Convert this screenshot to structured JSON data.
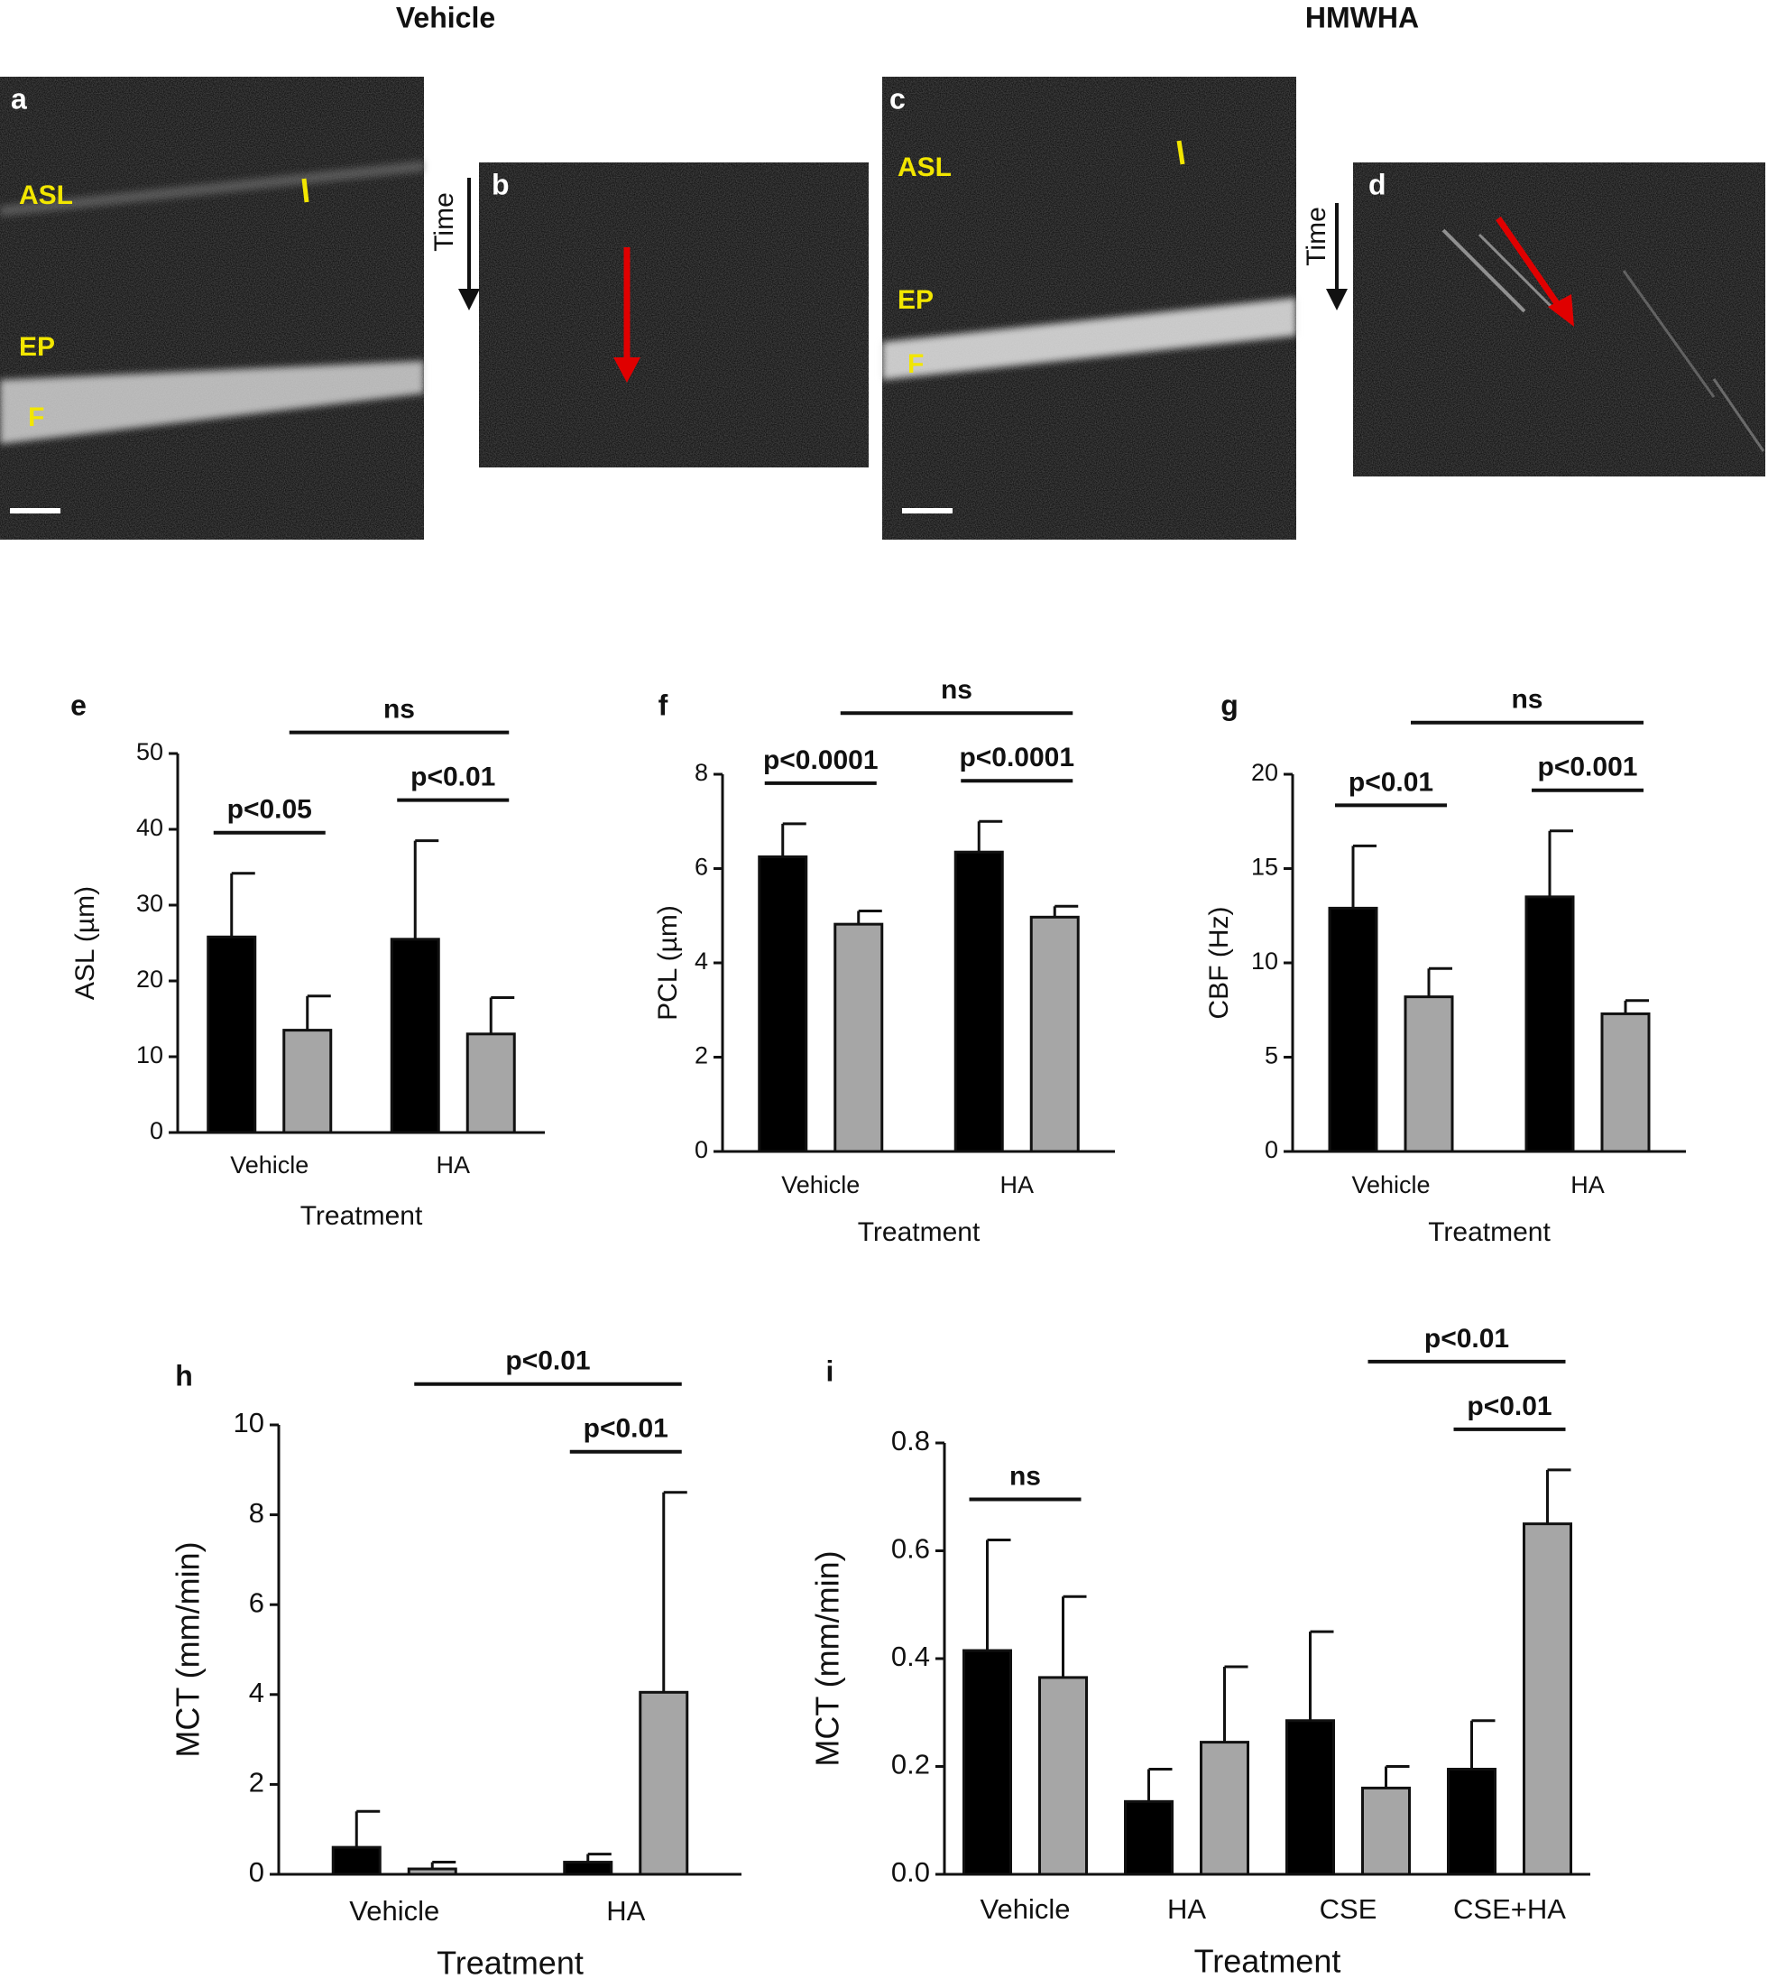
{
  "figure": {
    "titles": [
      "Vehicle",
      "HMWHA"
    ],
    "panels": [
      {
        "label": "a",
        "layers": [
          "ASL",
          "EP",
          "F"
        ]
      },
      {
        "label": "b",
        "axis": "Time"
      },
      {
        "label": "c",
        "layers": [
          "ASL",
          "EP",
          "F"
        ]
      },
      {
        "label": "d",
        "axis": "Time"
      }
    ]
  },
  "chart_data": [
    {
      "type": "bar",
      "panel": "e",
      "ylabel": "ASL (µm)",
      "xlabel": "Treatment",
      "categories": [
        "Vehicle",
        "HA"
      ],
      "ylim": [
        0,
        50
      ],
      "yticks": [
        0,
        10,
        20,
        30,
        40,
        50
      ],
      "series": [
        {
          "color": "#000000",
          "values": [
            25.8,
            25.5
          ],
          "errors": [
            8.4,
            13
          ]
        },
        {
          "color": "#a6a6a6",
          "values": [
            13.5,
            13
          ],
          "errors": [
            4.5,
            4.8
          ]
        }
      ],
      "brackets": [
        {
          "text": "p<0.05",
          "from": [
            0,
            0
          ],
          "to": [
            0,
            1
          ]
        },
        {
          "text": "p<0.01",
          "from": [
            1,
            0
          ],
          "to": [
            1,
            1
          ]
        },
        {
          "text": "ns",
          "from": [
            0,
            1
          ],
          "to": [
            1,
            1
          ]
        }
      ]
    },
    {
      "type": "bar",
      "panel": "f",
      "ylabel": "PCL (µm)",
      "xlabel": "Treatment",
      "categories": [
        "Vehicle",
        "HA"
      ],
      "ylim": [
        0,
        8
      ],
      "yticks": [
        0,
        2,
        4,
        6,
        8
      ],
      "series": [
        {
          "color": "#000000",
          "values": [
            6.25,
            6.35
          ],
          "errors": [
            0.7,
            0.65
          ]
        },
        {
          "color": "#a6a6a6",
          "values": [
            4.82,
            4.97
          ],
          "errors": [
            0.28,
            0.23
          ]
        }
      ],
      "brackets": [
        {
          "text": "p<0.0001",
          "from": [
            0,
            0
          ],
          "to": [
            0,
            1
          ]
        },
        {
          "text": "p<0.0001",
          "from": [
            1,
            0
          ],
          "to": [
            1,
            1
          ]
        },
        {
          "text": "ns",
          "from": [
            0,
            1
          ],
          "to": [
            1,
            1
          ]
        }
      ]
    },
    {
      "type": "bar",
      "panel": "g",
      "ylabel": "CBF (Hz)",
      "xlabel": "Treatment",
      "categories": [
        "Vehicle",
        "HA"
      ],
      "ylim": [
        0,
        20
      ],
      "yticks": [
        0,
        5,
        10,
        15,
        20
      ],
      "series": [
        {
          "color": "#000000",
          "values": [
            12.9,
            13.5
          ],
          "errors": [
            3.3,
            3.5
          ]
        },
        {
          "color": "#a6a6a6",
          "values": [
            8.2,
            7.3
          ],
          "errors": [
            1.5,
            0.7
          ]
        }
      ],
      "brackets": [
        {
          "text": "p<0.01",
          "from": [
            0,
            0
          ],
          "to": [
            0,
            1
          ]
        },
        {
          "text": "p<0.001",
          "from": [
            1,
            0
          ],
          "to": [
            1,
            1
          ]
        },
        {
          "text": "ns",
          "from": [
            0,
            1
          ],
          "to": [
            1,
            1
          ]
        }
      ]
    },
    {
      "type": "bar",
      "panel": "h",
      "ylabel": "MCT (mm/min)",
      "xlabel": "Treatment",
      "categories": [
        "Vehicle",
        "HA"
      ],
      "ylim": [
        0,
        10
      ],
      "yticks": [
        0,
        2,
        4,
        6,
        8,
        10
      ],
      "series": [
        {
          "color": "#000000",
          "values": [
            0.6,
            0.27
          ],
          "errors": [
            0.8,
            0.18
          ]
        },
        {
          "color": "#a6a6a6",
          "values": [
            0.12,
            4.05
          ],
          "errors": [
            0.15,
            4.45
          ]
        }
      ],
      "brackets": [
        {
          "text": "p<0.01",
          "from": [
            1,
            0
          ],
          "to": [
            1,
            1
          ]
        },
        {
          "text": "p<0.01",
          "from": [
            0,
            1
          ],
          "to": [
            1,
            1
          ]
        }
      ]
    },
    {
      "type": "bar",
      "panel": "i",
      "ylabel": "MCT (mm/min)",
      "xlabel": "Treatment",
      "categories": [
        "Vehicle",
        "HA",
        "CSE",
        "CSE+HA"
      ],
      "ylim": [
        0,
        0.8
      ],
      "yticks": [
        {
          "value": 0,
          "label": "0.0"
        },
        0.2,
        0.4,
        0.6,
        0.8
      ],
      "series": [
        {
          "color": "#000000",
          "values": [
            0.415,
            0.135,
            0.285,
            0.195
          ],
          "errors": [
            0.205,
            0.06,
            0.165,
            0.09
          ]
        },
        {
          "color": "#a6a6a6",
          "values": [
            0.365,
            0.245,
            0.16,
            0.65
          ],
          "errors": [
            0.15,
            0.14,
            0.04,
            0.1
          ]
        }
      ],
      "brackets": [
        {
          "text": "ns",
          "from": [
            0,
            0
          ],
          "to": [
            0,
            1
          ]
        },
        {
          "text": "p<0.01",
          "from": [
            3,
            0
          ],
          "to": [
            3,
            1
          ]
        },
        {
          "text": "p<0.01",
          "from": [
            2,
            1
          ],
          "to": [
            3,
            1
          ]
        }
      ]
    }
  ]
}
